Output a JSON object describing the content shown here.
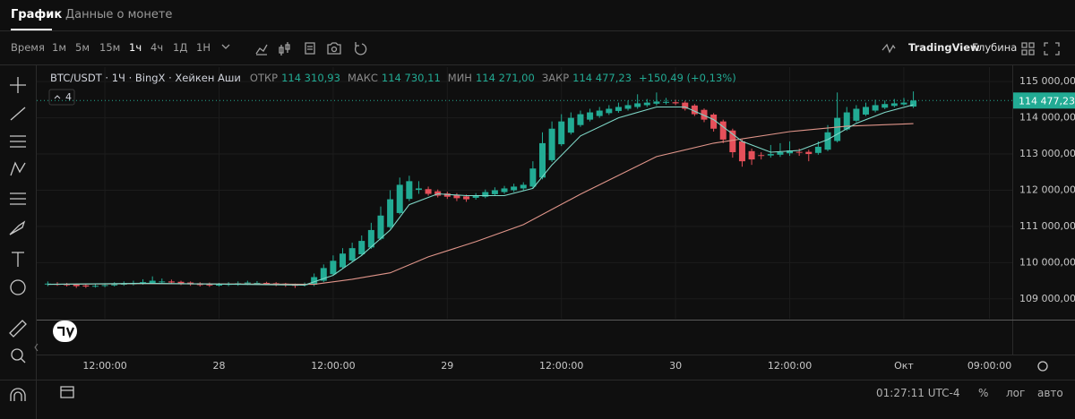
{
  "tabs": [
    "График",
    "Данные о монете"
  ],
  "toolbar": {
    "intervals": [
      "Время",
      "1м",
      "5м",
      "15м",
      "1ч",
      "4ч",
      "1Д",
      "1Н"
    ],
    "brand": "TradingView",
    "depth": "Глубина"
  },
  "legend": {
    "symbol": "BTC/USDT · 1Ч · BingX · Хейкен Аши",
    "open_label": "ОТКР",
    "open": "114 310,93",
    "high_label": "МАКС",
    "high": "114 730,11",
    "low_label": "МИН",
    "low": "114 271,00",
    "close_label": "ЗАКР",
    "close": "114 477,23",
    "change": "+150,49 (+0,13%)"
  },
  "indicators_count": "4",
  "status": {
    "time": "01:27:11 UTC-4",
    "percent": "%",
    "log": "лог",
    "auto": "авто"
  },
  "chart_data": {
    "type": "candlestick",
    "up_color": "#22ab94",
    "down_color": "#e5505a",
    "x": [
      0,
      1,
      2,
      3,
      4,
      5,
      6,
      7,
      8,
      9,
      10,
      11,
      12,
      13,
      14,
      15,
      16,
      17,
      18,
      19,
      20,
      21,
      22,
      23,
      24,
      25,
      26,
      27,
      28,
      29,
      30,
      31,
      32,
      33,
      34,
      35,
      36,
      37,
      38,
      39,
      40,
      41,
      42,
      43,
      44,
      45,
      46,
      47,
      48,
      49,
      50,
      51,
      52,
      53,
      54,
      55,
      56,
      57,
      58,
      59,
      60,
      61,
      62,
      63,
      64,
      65,
      66,
      67,
      68,
      69,
      70,
      71,
      72,
      73,
      74,
      75,
      76,
      77,
      78,
      79,
      80,
      81,
      82,
      83,
      84,
      85,
      86,
      87,
      88,
      89,
      90,
      91
    ],
    "open": [
      109400,
      109410,
      109400,
      109390,
      109370,
      109360,
      109360,
      109370,
      109390,
      109400,
      109420,
      109440,
      109470,
      109480,
      109470,
      109450,
      109430,
      109410,
      109390,
      109390,
      109400,
      109420,
      109440,
      109440,
      109430,
      109420,
      109400,
      109380,
      109390,
      109500,
      109680,
      109870,
      110060,
      110230,
      110420,
      110660,
      110980,
      111370,
      111760,
      112010,
      112030,
      111970,
      111910,
      111870,
      111830,
      111790,
      111820,
      111890,
      111950,
      112000,
      112050,
      112100,
      112350,
      112830,
      113270,
      113590,
      113800,
      113950,
      114050,
      114130,
      114190,
      114250,
      114300,
      114350,
      114390,
      114420,
      114430,
      114420,
      114340,
      114220,
      114090,
      113900,
      113650,
      113350,
      113080,
      112970,
      112960,
      112980,
      113020,
      113060,
      113060,
      113030,
      113120,
      113360,
      113680,
      113920,
      114090,
      114200,
      114280,
      114330,
      114370,
      114310.93
    ],
    "high": [
      109480,
      109460,
      109440,
      109420,
      109410,
      109420,
      109430,
      109460,
      109480,
      109500,
      109540,
      109620,
      109560,
      109530,
      109500,
      109480,
      109460,
      109450,
      109440,
      109460,
      109480,
      109500,
      109490,
      109470,
      109460,
      109440,
      109420,
      109450,
      109700,
      109950,
      110200,
      110400,
      110550,
      110750,
      111100,
      111550,
      112000,
      112350,
      112400,
      112250,
      112100,
      112020,
      111960,
      111920,
      111880,
      111920,
      112020,
      112080,
      112120,
      112180,
      112220,
      112800,
      113600,
      113900,
      114100,
      114150,
      114200,
      114250,
      114300,
      114350,
      114420,
      114480,
      114650,
      114520,
      114700,
      114550,
      114500,
      114470,
      114380,
      114260,
      114130,
      113950,
      113700,
      113400,
      113150,
      113050,
      113250,
      113300,
      113350,
      113150,
      113120,
      113350,
      113800,
      114700,
      114300,
      114350,
      114420,
      114500,
      114480,
      114520,
      114550,
      114730.11
    ],
    "low": [
      109350,
      109360,
      109340,
      109300,
      109300,
      109310,
      109320,
      109340,
      109360,
      109370,
      109390,
      109410,
      109430,
      109420,
      109380,
      109360,
      109340,
      109330,
      109340,
      109350,
      109360,
      109380,
      109400,
      109380,
      109350,
      109330,
      109300,
      109340,
      109350,
      109460,
      109640,
      109830,
      110020,
      110190,
      110380,
      110620,
      110940,
      111330,
      111700,
      111900,
      111850,
      111800,
      111760,
      111700,
      111680,
      111740,
      111780,
      111850,
      111900,
      111950,
      112000,
      112050,
      112300,
      112780,
      113220,
      113540,
      113750,
      113900,
      114000,
      114080,
      114140,
      114200,
      114250,
      114300,
      114340,
      114370,
      114350,
      114200,
      114050,
      113880,
      113620,
      113300,
      112900,
      112650,
      112700,
      112850,
      112900,
      112920,
      112950,
      112950,
      112800,
      112980,
      113080,
      113320,
      113640,
      113880,
      114050,
      114150,
      114240,
      114290,
      114330,
      114271.0
    ],
    "close": [
      109420,
      109400,
      109380,
      109350,
      109340,
      109360,
      109380,
      109400,
      109420,
      109440,
      109460,
      109500,
      109480,
      109450,
      109420,
      109400,
      109380,
      109370,
      109390,
      109410,
      109430,
      109450,
      109440,
      109420,
      109400,
      109380,
      109360,
      109400,
      109600,
      109850,
      110050,
      110250,
      110400,
      110600,
      110900,
      111300,
      111750,
      112150,
      112250,
      112050,
      111900,
      111850,
      111820,
      111780,
      111750,
      111850,
      111950,
      112000,
      112050,
      112100,
      112150,
      112600,
      113300,
      113700,
      113900,
      114000,
      114100,
      114150,
      114200,
      114250,
      114300,
      114350,
      114400,
      114420,
      114450,
      114440,
      114400,
      114250,
      114100,
      113950,
      113700,
      113400,
      113050,
      112800,
      112850,
      112950,
      113000,
      113050,
      113100,
      113050,
      113000,
      113200,
      113600,
      114000,
      114150,
      114250,
      114300,
      114350,
      114380,
      114400,
      114420,
      114477.23
    ],
    "lines": [
      {
        "color": "#e0958a",
        "x": [
          0,
          10,
          20,
          28,
          32,
          36,
          40,
          45,
          50,
          56,
          64,
          70,
          78,
          84,
          91
        ],
        "values": [
          109400,
          109420,
          109410,
          109400,
          109540,
          109720,
          110160,
          110580,
          111050,
          111890,
          112930,
          113300,
          113620,
          113770,
          113840
        ]
      },
      {
        "color": "#7fd8c8",
        "x": [
          0,
          10,
          20,
          27,
          30,
          33,
          36,
          38,
          41,
          44,
          48,
          51,
          53,
          56,
          60,
          64,
          67,
          70,
          73,
          76,
          79,
          82,
          85,
          88,
          91
        ],
        "values": [
          109400,
          109430,
          109400,
          109380,
          109650,
          110200,
          110900,
          111600,
          111900,
          111850,
          111850,
          112050,
          112700,
          113500,
          114000,
          114300,
          114300,
          113950,
          113350,
          113050,
          113100,
          113400,
          113850,
          114150,
          114360
        ]
      }
    ],
    "xlim": [
      -0.6,
      101.4
    ],
    "xticks": [
      {
        "value": 6,
        "label": "12:00:00"
      },
      {
        "value": 18,
        "label": "28"
      },
      {
        "value": 30,
        "label": "12:00:00"
      },
      {
        "value": 42,
        "label": "29"
      },
      {
        "value": 54,
        "label": "12:00:00"
      },
      {
        "value": 66,
        "label": "30"
      },
      {
        "value": 78,
        "label": "12:00:00"
      },
      {
        "value": 90,
        "label": "Окт"
      },
      {
        "value": 99,
        "label": "09:00:00"
      }
    ],
    "ylim": [
      108450,
      115400
    ],
    "yticks": [
      {
        "value": 109000,
        "label": "109 000,00"
      },
      {
        "value": 110000,
        "label": "110 000,00"
      },
      {
        "value": 111000,
        "label": "111 000,00"
      },
      {
        "value": 112000,
        "label": "112 000,00"
      },
      {
        "value": 113000,
        "label": "113 000,00"
      },
      {
        "value": 114000,
        "label": "114 000,00"
      },
      {
        "value": 115000,
        "label": "115 000,00"
      }
    ],
    "last_price": {
      "value": 114477.23,
      "label": "114 477,23"
    },
    "grid": true
  }
}
